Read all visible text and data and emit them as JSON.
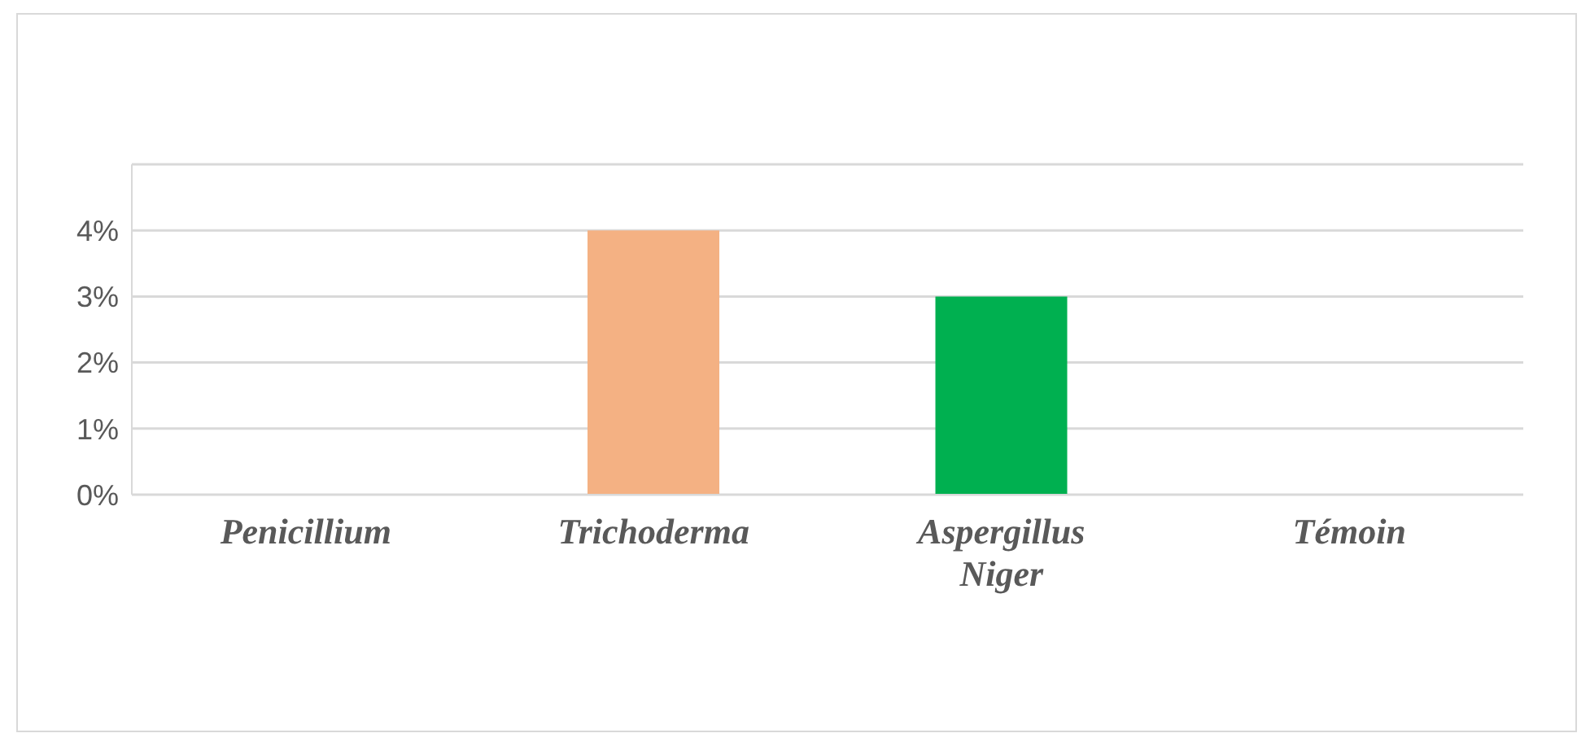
{
  "chart_data": {
    "type": "bar",
    "categories": [
      "Penicillium",
      "Trichoderma",
      "Aspergillus Niger",
      "Témoin"
    ],
    "values": [
      0,
      4,
      3,
      0
    ],
    "colors": [
      "#878787",
      "#f4b183",
      "#00b050",
      "#00558f"
    ],
    "ylim": [
      0,
      5
    ],
    "yticks": [
      {
        "value": 0,
        "label": "0%"
      },
      {
        "value": 1,
        "label": "1%"
      },
      {
        "value": 2,
        "label": "2%"
      },
      {
        "value": 3,
        "label": "3%"
      },
      {
        "value": 4,
        "label": "4%"
      },
      {
        "value": 5,
        "label": null
      }
    ],
    "grid": "y",
    "legend": false
  }
}
